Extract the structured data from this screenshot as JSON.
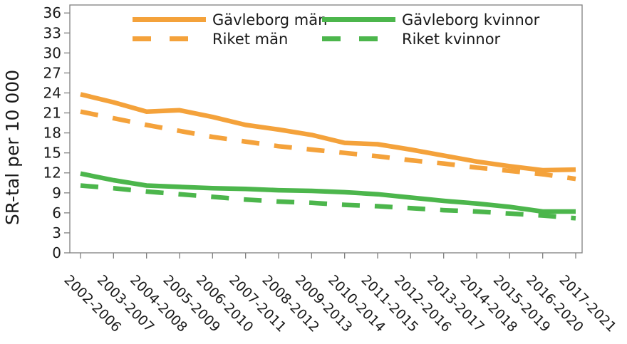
{
  "chart_data": {
    "type": "line",
    "title": "",
    "xlabel": "",
    "ylabel": "SR-tal per 10 000",
    "ylim": [
      0,
      37.2
    ],
    "yticks": [
      0,
      3,
      6,
      9,
      12,
      15,
      18,
      21,
      24,
      27,
      30,
      33,
      36
    ],
    "grid": false,
    "legend_position": "top-inside",
    "categories": [
      "2002-2006",
      "2003-2007",
      "2004-2008",
      "2005-2009",
      "2006-2010",
      "2007-2011",
      "2008-2012",
      "2009-2013",
      "2010-2014",
      "2011-2015",
      "2012-2016",
      "2013-2017",
      "2014-2018",
      "2015-2019",
      "2016-2020",
      "2017-2021"
    ],
    "series": [
      {
        "name": "Gävleborg män",
        "style": "solid",
        "color": "#F4A23B",
        "values": [
          23.8,
          22.6,
          21.2,
          21.4,
          20.4,
          19.2,
          18.5,
          17.7,
          16.5,
          16.3,
          15.5,
          14.6,
          13.7,
          13.0,
          12.4,
          12.5
        ]
      },
      {
        "name": "Riket män",
        "style": "dashed",
        "color": "#F4A23B",
        "values": [
          21.2,
          20.2,
          19.2,
          18.3,
          17.4,
          16.7,
          16.0,
          15.5,
          15.0,
          14.5,
          13.9,
          13.4,
          12.8,
          12.3,
          11.8,
          11.1
        ]
      },
      {
        "name": "Gävleborg kvinnor",
        "style": "solid",
        "color": "#4CB64C",
        "values": [
          11.9,
          10.9,
          10.1,
          9.9,
          9.7,
          9.6,
          9.4,
          9.3,
          9.1,
          8.8,
          8.3,
          7.8,
          7.4,
          6.9,
          6.2,
          6.2
        ]
      },
      {
        "name": "Riket kvinnor",
        "style": "dashed",
        "color": "#4CB64C",
        "values": [
          10.1,
          9.7,
          9.2,
          8.8,
          8.4,
          8.0,
          7.7,
          7.5,
          7.2,
          7.0,
          6.7,
          6.4,
          6.2,
          5.9,
          5.6,
          5.2
        ]
      }
    ],
    "colors": {
      "axis": "#7f7f7f",
      "text": "#1a1a1a"
    }
  }
}
